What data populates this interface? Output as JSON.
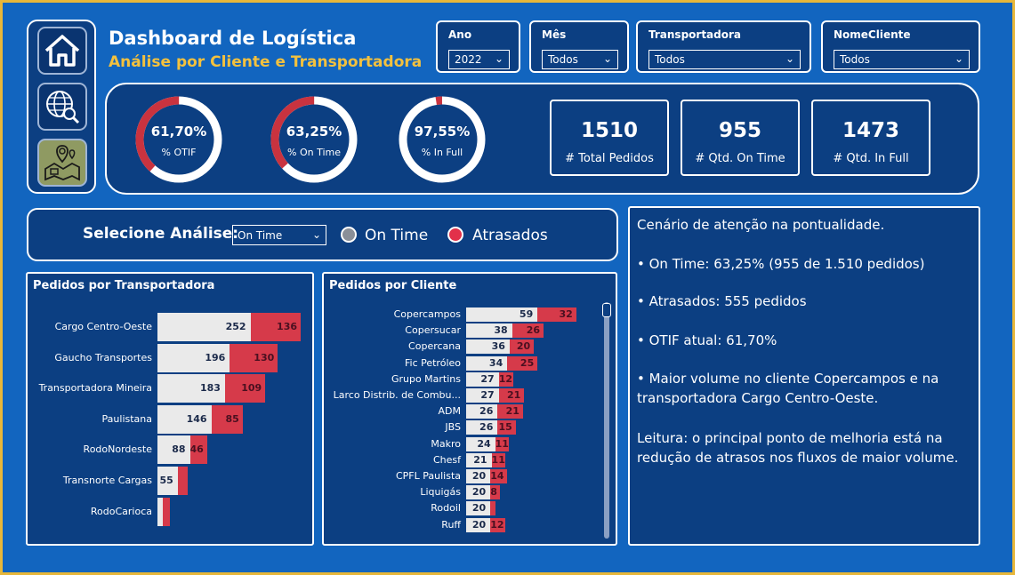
{
  "header": {
    "title": "Dashboard de Logística",
    "subtitle": "Análise por Cliente e Transportadora"
  },
  "nav": {
    "items": [
      {
        "icon": "home-icon"
      },
      {
        "icon": "globe-search-icon"
      },
      {
        "icon": "logistics-map-icon"
      }
    ]
  },
  "filters": [
    {
      "label": "Ano",
      "value": "2022"
    },
    {
      "label": "Mês",
      "value": "Todos"
    },
    {
      "label": "Transportadora",
      "value": "Todos"
    },
    {
      "label": "NomeCliente",
      "value": "Todos"
    }
  ],
  "kpis": {
    "donuts": [
      {
        "value": "61,70%",
        "label": "% OTIF",
        "fraction": 0.617
      },
      {
        "value": "63,25%",
        "label": "% On Time",
        "fraction": 0.6325
      },
      {
        "value": "97,55%",
        "label": "% In Full",
        "fraction": 0.9755
      }
    ],
    "cards": [
      {
        "value": "1510",
        "label": "# Total Pedidos"
      },
      {
        "value": "955",
        "label": "# Qtd. On Time"
      },
      {
        "value": "1473",
        "label": "# Qtd. In Full"
      }
    ]
  },
  "selector": {
    "label": "Selecione Análise:",
    "value": "On Time",
    "legend": [
      {
        "label": "On Time",
        "color": "#8a8f98"
      },
      {
        "label": "Atrasados",
        "color": "#e2304a"
      }
    ]
  },
  "colors": {
    "on": "#eaeaea",
    "late": "#d63a4a",
    "accent": "#f3c13e"
  },
  "chart_data": [
    {
      "type": "bar",
      "title": "Pedidos por Transportadora",
      "orientation": "horizontal-stacked",
      "categories": [
        "Cargo Centro-Oeste",
        "Gaucho Transportes",
        "Transportadora Mineira",
        "Paulistana",
        "RodoNordeste",
        "Transnorte Cargas",
        "RodoCarioca"
      ],
      "series": [
        {
          "values": [
            252,
            196,
            183,
            146,
            88,
            55,
            14
          ]
        },
        {
          "values": [
            136,
            130,
            109,
            85,
            46,
            26,
            20
          ]
        }
      ],
      "labels": {
        "on": [
          "252",
          "196",
          "183",
          "146",
          "88",
          "55",
          ""
        ],
        "late": [
          "136",
          "130",
          "109",
          "85",
          "46",
          "",
          ""
        ]
      }
    },
    {
      "type": "bar",
      "title": "Pedidos por Cliente",
      "orientation": "horizontal-stacked",
      "categories": [
        "Copercampos",
        "Copersucar",
        "Copercana",
        "Fic Petróleo",
        "Grupo Martins",
        "Larco Distrib. de Combu...",
        "ADM",
        "JBS",
        "Makro",
        "Chesf",
        "CPFL Paulista",
        "Liquigás",
        "Rodoil",
        "Ruff"
      ],
      "series": [
        {
          "values": [
            59,
            38,
            36,
            34,
            27,
            27,
            26,
            26,
            24,
            21,
            20,
            20,
            20,
            20
          ]
        },
        {
          "values": [
            32,
            26,
            20,
            25,
            12,
            21,
            21,
            15,
            11,
            11,
            14,
            8,
            4,
            12
          ]
        }
      ],
      "labels": {
        "on": [
          "59",
          "38",
          "36",
          "34",
          "27",
          "27",
          "26",
          "26",
          "24",
          "21",
          "20",
          "20",
          "20",
          "20"
        ],
        "late": [
          "32",
          "26",
          "20",
          "25",
          "12",
          "21",
          "21",
          "15",
          "11",
          "11",
          "14",
          "8",
          "",
          "12"
        ]
      }
    }
  ],
  "insights": [
    "Cenário de atenção na pontualidade.",
    "• On Time: 63,25% (955 de 1.510 pedidos)",
    "• Atrasados: 555 pedidos",
    "• OTIF atual: 61,70%",
    "• Maior volume no cliente Copercampos e na transportadora Cargo Centro-Oeste.",
    "Leitura: o principal ponto de melhoria está na redução de atrasos nos fluxos de maior volume."
  ]
}
